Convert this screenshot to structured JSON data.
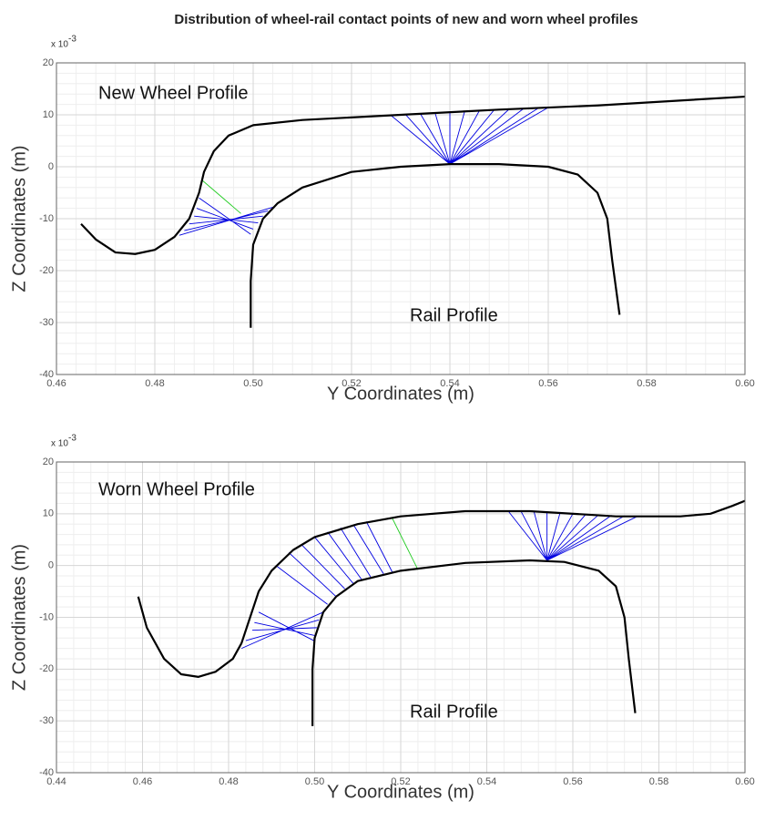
{
  "title": "Distribution of wheel-rail contact points of new and worn wheel profiles",
  "chart_data": [
    {
      "type": "line",
      "xlabel": "Y Coordinates (m)",
      "ylabel": "Z Coordinates (m)",
      "y_scale_label": {
        "base": "x 10",
        "exponent": "-3"
      },
      "annotations": [
        "New Wheel Profile",
        "Rail Profile"
      ],
      "xlim": [
        0.46,
        0.6
      ],
      "ylim": [
        -40,
        20
      ],
      "xticks": [
        0.46,
        0.48,
        {
          "value": 0.5,
          "label": "0.50"
        },
        0.52,
        0.54,
        0.56,
        0.58,
        {
          "value": 0.6,
          "label": "0.60"
        }
      ],
      "yticks": [
        -40,
        -30,
        -20,
        -10,
        0,
        10,
        20
      ],
      "grid": true,
      "minor_divisions": 5,
      "series": [
        {
          "color": "#0000e0",
          "x": [
            0.54,
            0.528,
            null,
            0.54,
            0.531,
            null,
            0.54,
            0.534,
            null,
            0.54,
            0.537,
            null,
            0.54,
            0.54,
            null,
            0.54,
            0.543,
            null,
            0.54,
            0.546,
            null,
            0.54,
            0.549,
            null,
            0.54,
            0.552,
            null,
            0.54,
            0.555,
            null,
            0.54,
            0.558,
            null,
            0.54,
            0.56,
            null,
            0.485,
            0.504,
            null,
            0.486,
            0.503,
            null,
            0.487,
            0.502,
            null,
            0.488,
            0.501,
            null,
            0.4885,
            0.5,
            null,
            0.489,
            0.4995
          ],
          "values": [
            0.5,
            9.9,
            null,
            0.5,
            10.05,
            null,
            0.5,
            10.2,
            null,
            0.5,
            10.35,
            null,
            0.5,
            10.5,
            null,
            0.5,
            10.65,
            null,
            0.5,
            10.8,
            null,
            0.5,
            10.95,
            null,
            0.5,
            11.05,
            null,
            0.5,
            11.2,
            null,
            0.5,
            11.3,
            null,
            0.5,
            11.4,
            null,
            -13.2,
            -7.8,
            null,
            -12.3,
            -8.5,
            null,
            -11,
            -9.5,
            null,
            -9.5,
            -10.8,
            null,
            -8,
            -12,
            null,
            -6,
            -13
          ]
        },
        {
          "color": "#22cc22",
          "x": [
            0.4895,
            0.4975
          ],
          "values": [
            -2.5,
            -9
          ]
        },
        {
          "color": "#000000",
          "x": [
            0.465,
            0.468,
            0.472,
            0.476,
            0.48,
            0.484,
            0.487,
            0.489,
            0.49,
            0.492,
            0.495,
            0.5,
            0.51,
            0.53,
            0.55,
            0.57,
            0.6
          ],
          "values": [
            -11,
            -14,
            -16.5,
            -16.8,
            -16,
            -13.5,
            -10,
            -5,
            -1,
            3,
            6,
            8,
            9,
            10,
            11,
            11.8,
            13.5
          ]
        },
        {
          "color": "#000000",
          "x": [
            0.4995,
            0.4995,
            0.5,
            0.502,
            0.505,
            0.51,
            0.52,
            0.53,
            0.54,
            0.55,
            0.56,
            0.566,
            0.57,
            0.572,
            0.573,
            0.5745
          ],
          "values": [
            -31,
            -22,
            -15,
            -10,
            -7,
            -4,
            -1,
            0,
            0.5,
            0.5,
            0,
            -1.5,
            -5,
            -10,
            -18,
            -28.5
          ]
        }
      ]
    },
    {
      "type": "line",
      "xlabel": "Y Coordinates (m)",
      "ylabel": "Z Coordinates (m)",
      "y_scale_label": {
        "base": "x 10",
        "exponent": "-3"
      },
      "annotations": [
        "Worn Wheel Profile",
        "Rail Profile"
      ],
      "xlim": [
        0.44,
        0.6
      ],
      "ylim": [
        -40,
        20
      ],
      "xticks": [
        0.44,
        0.46,
        0.48,
        {
          "value": 0.5,
          "label": "0.50"
        },
        0.52,
        0.54,
        0.56,
        0.58,
        {
          "value": 0.6,
          "label": "0.60"
        }
      ],
      "yticks": [
        -40,
        -30,
        -20,
        -10,
        0,
        10,
        20
      ],
      "grid": true,
      "minor_divisions": 5,
      "series": [
        {
          "color": "#0000e0",
          "x": [
            0.554,
            0.545,
            null,
            0.554,
            0.548,
            null,
            0.554,
            0.551,
            null,
            0.554,
            0.554,
            null,
            0.554,
            0.557,
            null,
            0.554,
            0.56,
            null,
            0.554,
            0.563,
            null,
            0.554,
            0.566,
            null,
            0.554,
            0.569,
            null,
            0.554,
            0.572,
            null,
            0.554,
            0.575,
            null,
            0.491,
            0.503,
            null,
            0.494,
            0.505,
            null,
            0.497,
            0.507,
            null,
            0.5,
            0.509,
            null,
            0.503,
            0.511,
            null,
            0.506,
            0.513,
            null,
            0.509,
            0.516,
            null,
            0.512,
            0.518,
            null,
            0.483,
            0.502,
            null,
            0.484,
            0.501,
            null,
            0.4855,
            0.5005,
            null,
            0.486,
            0.5,
            null,
            0.487,
            0.4998
          ],
          "values": [
            1,
            10.5,
            null,
            1,
            10.4,
            null,
            1,
            10.3,
            null,
            1,
            10.2,
            null,
            1,
            10.1,
            null,
            1,
            10,
            null,
            1,
            9.9,
            null,
            1,
            9.8,
            null,
            1,
            9.7,
            null,
            1,
            9.6,
            null,
            1,
            9.5,
            null,
            0,
            -7.5,
            null,
            2.5,
            -6,
            null,
            4,
            -4.5,
            null,
            5.5,
            -3.5,
            null,
            6.5,
            -2.8,
            null,
            7.3,
            -2.2,
            null,
            7.9,
            -1.6,
            null,
            8.5,
            -1.2,
            null,
            -16,
            -9,
            null,
            -14.5,
            -10.5,
            null,
            -12.5,
            -12,
            null,
            -11,
            -13.5,
            null,
            -9,
            -14.5
          ]
        },
        {
          "color": "#22cc22",
          "x": [
            0.518,
            0.524
          ],
          "values": [
            9.2,
            -0.8
          ]
        },
        {
          "color": "#000000",
          "x": [
            0.459,
            0.461,
            0.465,
            0.469,
            0.473,
            0.477,
            0.481,
            0.483,
            0.485,
            0.487,
            0.49,
            0.495,
            0.5,
            0.51,
            0.52,
            0.535,
            0.55,
            0.57,
            0.585,
            0.592,
            0.597,
            0.6
          ],
          "values": [
            -6,
            -12,
            -18,
            -21,
            -21.5,
            -20.5,
            -18,
            -15,
            -10,
            -5,
            -1,
            3,
            5.5,
            8,
            9.5,
            10.5,
            10.5,
            9.5,
            9.5,
            10,
            11.5,
            12.5
          ]
        },
        {
          "color": "#000000",
          "x": [
            0.4995,
            0.4995,
            0.5,
            0.502,
            0.505,
            0.51,
            0.52,
            0.535,
            0.55,
            0.558,
            0.566,
            0.57,
            0.572,
            0.573,
            0.5745
          ],
          "values": [
            -31,
            -20,
            -14,
            -9,
            -6,
            -3,
            -1,
            0.5,
            1,
            0.7,
            -1,
            -4,
            -10,
            -18,
            -28.5
          ]
        }
      ]
    }
  ]
}
